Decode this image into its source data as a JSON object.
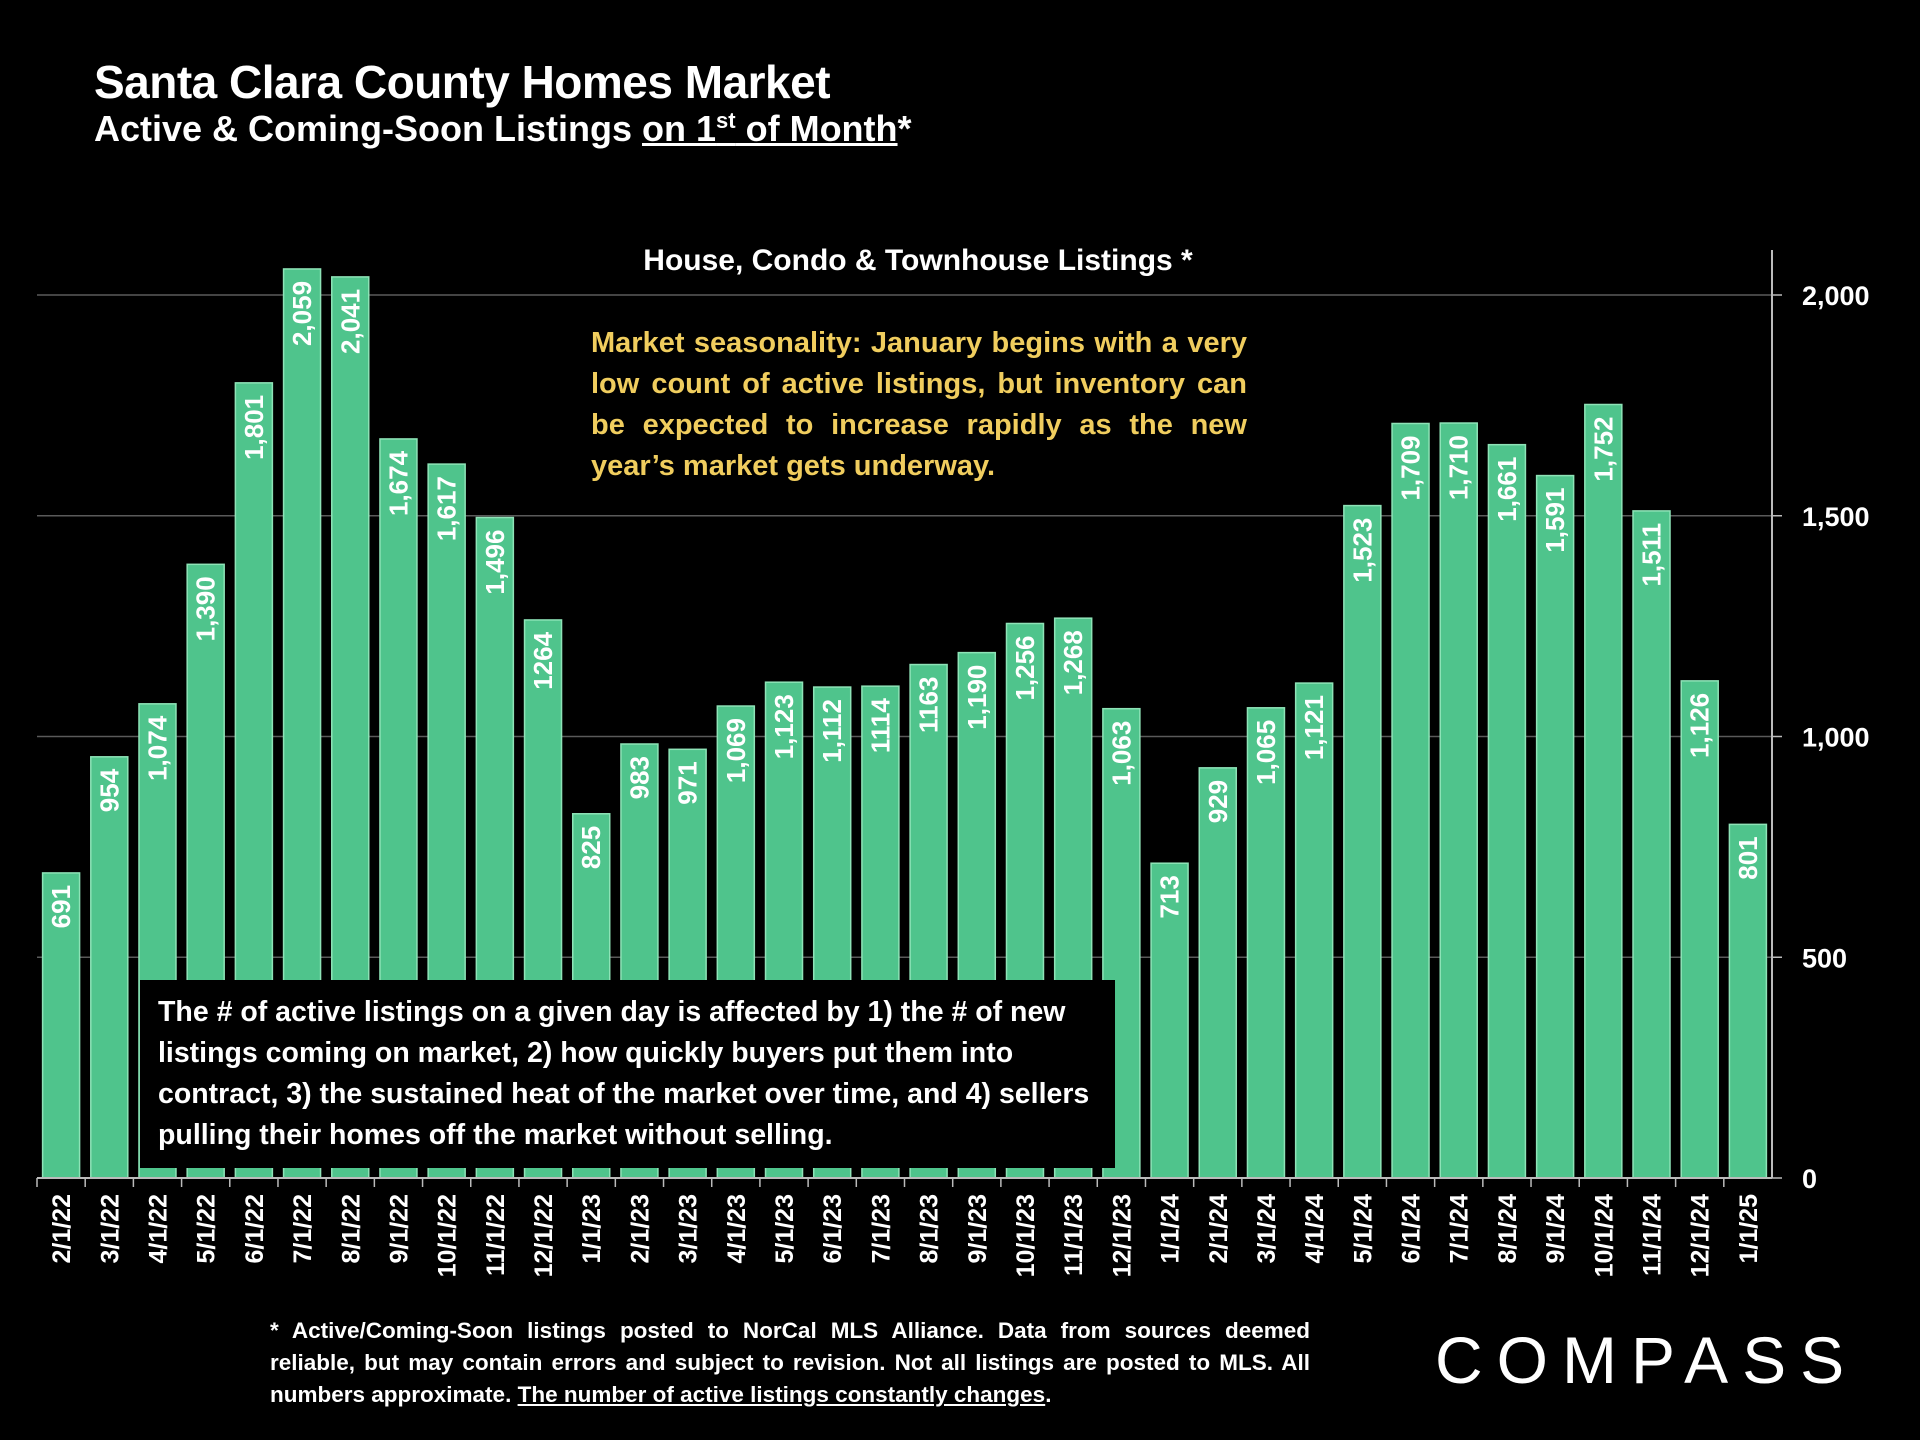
{
  "title": "Santa Clara County Homes Market",
  "subtitle": {
    "prefix": "Active & Coming-Soon Listings ",
    "underlined_a": "on 1",
    "sup": "st",
    "underlined_b": " of Month",
    "suffix": "*"
  },
  "seasonality_note": "Market seasonality:  January begins with a very low count of active listings, but inventory can be expected to increase rapidly as the new year’s market gets underway.",
  "explanation_note": "The # of active listings on a given day is affected by 1) the # of new listings coming on market, 2) how quickly buyers put them into contract, 3) the sustained heat of the market over time, and 4) sellers pulling their homes off the market without selling.",
  "footnote": {
    "text": "* Active/Coming-Soon listings posted to NorCal MLS Alliance.  Data from sources deemed reliable, but may contain errors and subject to revision.  Not all listings are posted to MLS. All numbers approximate. ",
    "underlined": "The number of active listings constantly changes",
    "end": "."
  },
  "logo": "COMPASS",
  "colors": {
    "bar": "#4fc48c",
    "background": "#000000",
    "annotation": "#f0cd5e"
  },
  "chart_data": {
    "type": "bar",
    "title": "House, Condo & Townhouse Listings *",
    "categories": [
      "2/1/22",
      "3/1/22",
      "4/1/22",
      "5/1/22",
      "6/1/22",
      "7/1/22",
      "8/1/22",
      "9/1/22",
      "10/1/22",
      "11/1/22",
      "12/1/22",
      "1/1/23",
      "2/1/23",
      "3/1/23",
      "4/1/23",
      "5/1/23",
      "6/1/23",
      "7/1/23",
      "8/1/23",
      "9/1/23",
      "10/1/23",
      "11/1/23",
      "12/1/23",
      "1/1/24",
      "2/1/24",
      "3/1/24",
      "4/1/24",
      "5/1/24",
      "6/1/24",
      "7/1/24",
      "8/1/24",
      "9/1/24",
      "10/1/24",
      "11/1/24",
      "12/1/24",
      "1/1/25"
    ],
    "values": [
      691,
      954,
      1074,
      1390,
      1801,
      2059,
      2041,
      1674,
      1617,
      1496,
      1264,
      825,
      983,
      971,
      1069,
      1123,
      1112,
      1114,
      1163,
      1190,
      1256,
      1268,
      1063,
      713,
      929,
      1065,
      1121,
      1523,
      1709,
      1710,
      1661,
      1591,
      1752,
      1511,
      1126,
      801
    ],
    "labels": [
      "691",
      "954",
      "1,074",
      "1,390",
      "1,801",
      "2,059",
      "2,041",
      "1,674",
      "1,617",
      "1,496",
      "1264",
      "825",
      "983",
      "971",
      "1,069",
      "1,123",
      "1,112",
      "1114",
      "1163",
      "1,190",
      "1,256",
      "1,268",
      "1,063",
      "713",
      "929",
      "1,065",
      "1,121",
      "1,523",
      "1,709",
      "1,710",
      "1,661",
      "1,591",
      "1,752",
      "1,511",
      "1,126",
      "801"
    ],
    "yticks": [
      0,
      500,
      1000,
      1500,
      2000
    ],
    "ytick_labels": [
      "0",
      "500",
      "1,000",
      "1,500",
      "2,000"
    ],
    "ylim": [
      0,
      2100
    ],
    "grid": true,
    "y_axis_side": "right"
  }
}
